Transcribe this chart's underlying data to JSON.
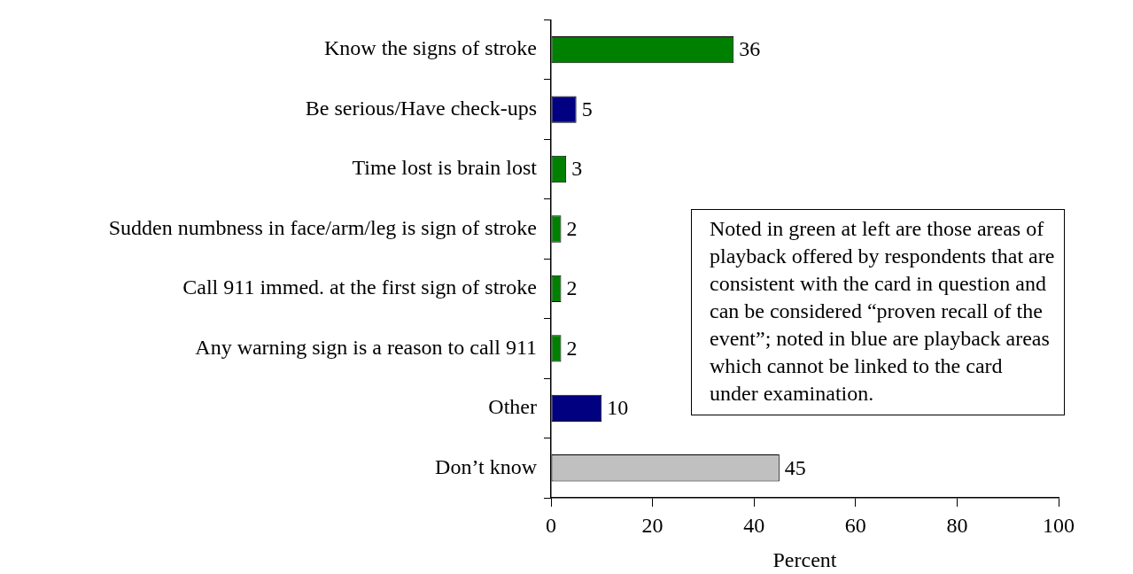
{
  "chart_data": {
    "type": "bar",
    "orientation": "horizontal",
    "categories": [
      "Know the signs of stroke",
      "Be serious/Have check-ups",
      "Time lost is brain lost",
      "Sudden numbness in face/arm/leg is sign of stroke",
      "Call 911 immed. at the first sign of stroke",
      "Any warning sign is a reason to call 911",
      "Other",
      "Don’t know"
    ],
    "values": [
      36,
      5,
      3,
      2,
      2,
      2,
      10,
      45
    ],
    "colors": [
      "#008000",
      "#000080",
      "#008000",
      "#008000",
      "#008000",
      "#008000",
      "#000080",
      "#c0c0c0"
    ],
    "xlim": [
      0,
      100
    ],
    "xticks": [
      0,
      20,
      40,
      60,
      80,
      100
    ],
    "xlabel": "Percent",
    "grid": false,
    "legend": false,
    "data_labels": true,
    "annotations": [
      "Noted in green at left are those areas of playback offered by respondents that are consistent with the card in question and can be considered “proven recall of the event”; noted in blue are playback areas which cannot be linked to the card under examination."
    ]
  }
}
